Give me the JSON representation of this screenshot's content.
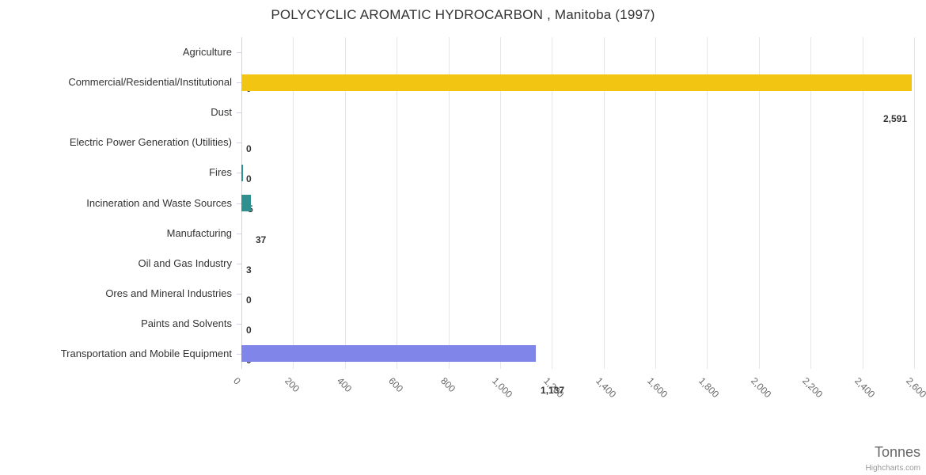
{
  "chart": {
    "title": "POLYCYCLIC AROMATIC HYDROCARBON , Manitoba (1997)",
    "axis_title": "Tonnes",
    "credits": "Highcharts.com"
  },
  "chart_data": {
    "type": "bar",
    "orientation": "horizontal",
    "title": "POLYCYCLIC AROMATIC HYDROCARBON , Manitoba (1997)",
    "categories": [
      "Agriculture",
      "Commercial/Residential/Institutional",
      "Dust",
      "Electric Power Generation (Utilities)",
      "Fires",
      "Incineration and Waste Sources",
      "Manufacturing",
      "Oil and Gas Industry",
      "Ores and Mineral Industries",
      "Paints and Solvents",
      "Transportation and Mobile Equipment"
    ],
    "values": [
      0,
      2591,
      0,
      0,
      5,
      37,
      3,
      0,
      0,
      0,
      1137
    ],
    "value_labels": [
      "0",
      "2,591",
      "0",
      "0",
      "5",
      "37",
      "3",
      "0",
      "0",
      "0",
      "1,137"
    ],
    "point_colors": [
      null,
      "#f1c512",
      null,
      null,
      "#2f908f",
      "#2f908f",
      "#2f908f",
      null,
      null,
      null,
      "#8085e9"
    ],
    "xlabel": "Tonnes",
    "ylabel": "",
    "xlim": [
      0,
      2600
    ],
    "tick_interval": 200,
    "tick_labels": [
      "0",
      "200",
      "400",
      "600",
      "800",
      "1,000",
      "1,200",
      "1,400",
      "1,600",
      "1,800",
      "2,000",
      "2,200",
      "2,400",
      "2,600"
    ],
    "grid": true,
    "legend": false
  },
  "colors": {
    "gridline": "#e6e6e6",
    "axis_line": "#ccd6eb",
    "tick": "#ccd6eb",
    "title_text": "#333333",
    "category_text": "#333333",
    "value_text": "#333333",
    "axis_label_text": "#666666",
    "axis_title_text": "#666666",
    "credits_text": "#999999",
    "background": "#ffffff"
  }
}
